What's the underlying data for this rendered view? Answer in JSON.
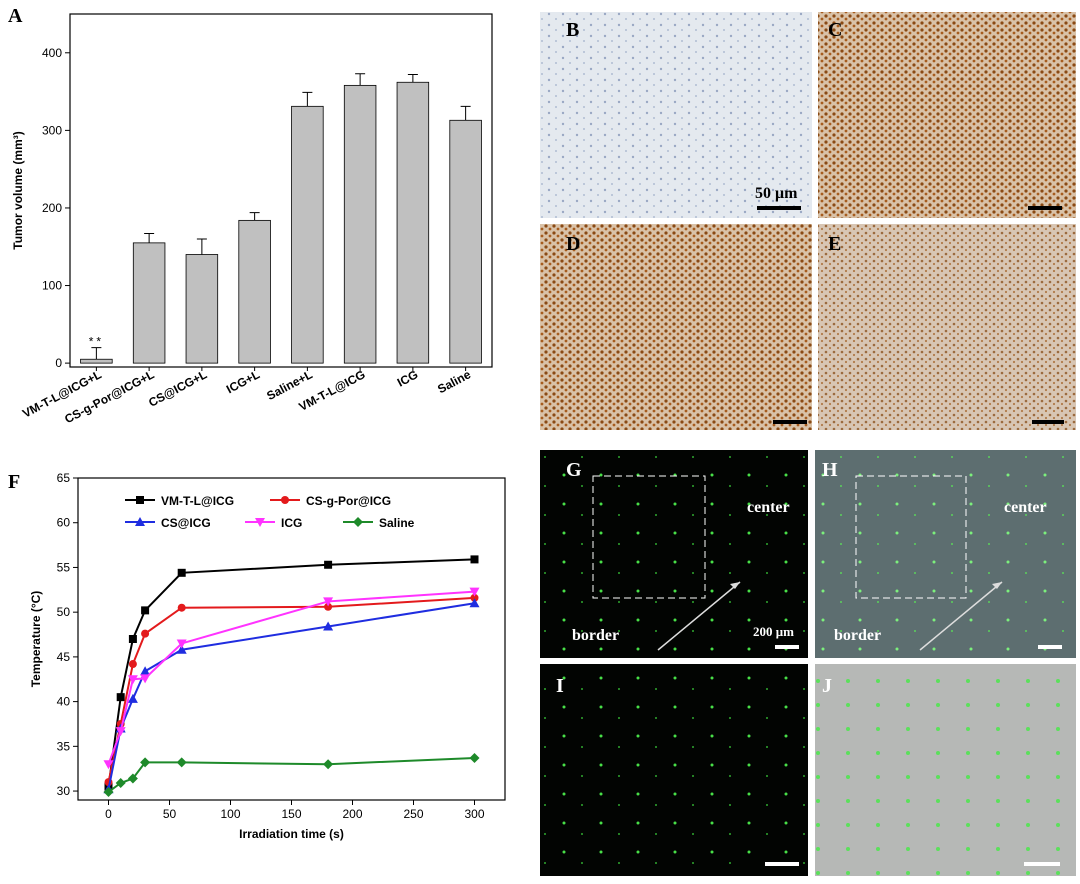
{
  "chart_data": [
    {
      "type": "bar",
      "panel": "A",
      "ylabel": "Tumor volume (mm³)",
      "categories": [
        "VM-T-L@ICG+L",
        "CS-g-Por@ICG+L",
        "CS@ICG+L",
        "ICG+L",
        "Saline+L",
        "VM-T-L@ICG",
        "ICG",
        "Saline"
      ],
      "values": [
        5,
        155,
        140,
        184,
        331,
        358,
        362,
        313
      ],
      "errors": [
        15,
        12,
        20,
        10,
        18,
        15,
        10,
        18
      ],
      "color": "#c0c0c0",
      "annotation": "**",
      "ylim": [
        -5,
        450
      ],
      "yticks": [
        0,
        100,
        200,
        300,
        400
      ]
    },
    {
      "type": "line",
      "panel": "F",
      "xlabel": "Irradiation time (s)",
      "ylabel": "Temperature (°C)",
      "x": [
        0,
        10,
        20,
        30,
        60,
        180,
        300
      ],
      "series": [
        {
          "name": "VM-T-L@ICG",
          "color": "#000000",
          "marker": "square",
          "values": [
            30.5,
            40.5,
            47,
            50.2,
            54.4,
            55.3,
            55.9
          ]
        },
        {
          "name": "CS-g-Por@ICG",
          "color": "#e31a1c",
          "marker": "circle",
          "values": [
            31,
            37.5,
            44.2,
            47.6,
            50.5,
            50.6,
            51.6
          ]
        },
        {
          "name": "CS@ICG",
          "color": "#1f2de0",
          "marker": "triangle-up",
          "values": [
            30.2,
            37,
            40.3,
            43.4,
            45.8,
            48.4,
            51
          ]
        },
        {
          "name": "ICG",
          "color": "#ff33ff",
          "marker": "triangle-down",
          "values": [
            33,
            36.7,
            42.5,
            42.6,
            46.5,
            51.2,
            52.3
          ]
        },
        {
          "name": "Saline",
          "color": "#1e8a2a",
          "marker": "diamond",
          "values": [
            29.9,
            30.9,
            31.4,
            33.2,
            33.2,
            33,
            33.7
          ]
        }
      ],
      "xlim": [
        -25,
        325
      ],
      "xticks": [
        0,
        50,
        100,
        150,
        200,
        250,
        300
      ],
      "ylim": [
        29,
        65
      ],
      "yticks": [
        30,
        35,
        40,
        45,
        50,
        55,
        60,
        65
      ]
    }
  ],
  "panels": [
    {
      "label": "B",
      "texts": [
        "50 μm"
      ]
    },
    {
      "label": "C"
    },
    {
      "label": "D"
    },
    {
      "label": "E"
    },
    {
      "label": "G",
      "texts": [
        "center",
        "border",
        "200 μm"
      ]
    },
    {
      "label": "H",
      "texts": [
        "center",
        "border"
      ]
    },
    {
      "label": "I"
    },
    {
      "label": "J"
    }
  ]
}
